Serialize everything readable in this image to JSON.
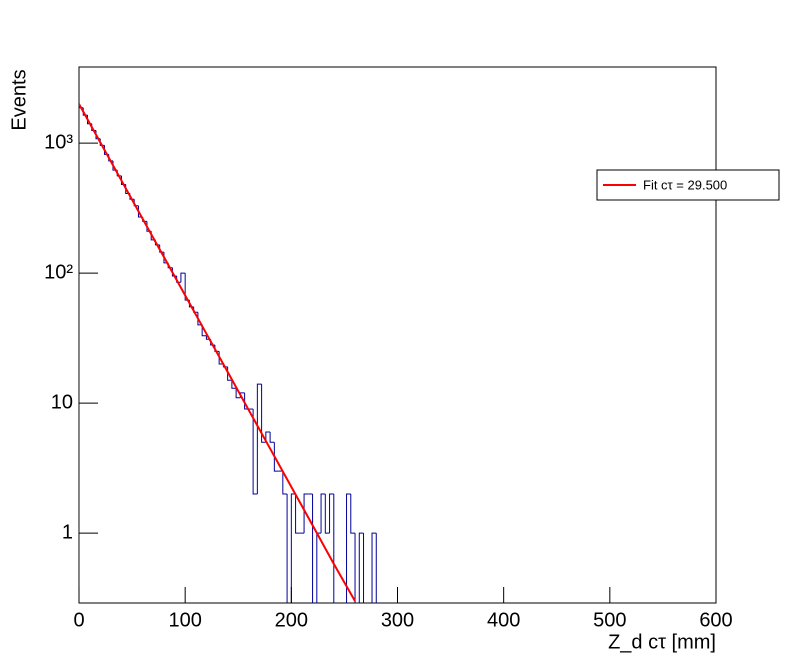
{
  "chart_data": {
    "type": "histogram",
    "x_label": "Z_d cτ [mm]",
    "y_label": "Events",
    "log_y": true,
    "xlim": [
      0,
      600
    ],
    "ylim": [
      0.29,
      3850
    ],
    "xticks": [
      0,
      100,
      200,
      300,
      400,
      500,
      600
    ],
    "yticks": [
      1,
      10,
      {
        "value": 100,
        "label": "10²"
      },
      {
        "value": 1000,
        "label": "10³"
      }
    ],
    "legend_position": "upper right",
    "bins": [
      0,
      4,
      8,
      12,
      16,
      20,
      24,
      28,
      32,
      36,
      40,
      44,
      48,
      52,
      56,
      60,
      64,
      68,
      72,
      76,
      80,
      84,
      88,
      92,
      96,
      100,
      104,
      108,
      112,
      116,
      120,
      124,
      128,
      132,
      136,
      140,
      144,
      148,
      152,
      156,
      160,
      164,
      168,
      172,
      176,
      180,
      184,
      188,
      192,
      196,
      200,
      204,
      208,
      212,
      216,
      220,
      224,
      228,
      232,
      236,
      240,
      244,
      248,
      252,
      256,
      260,
      264,
      268,
      272,
      276,
      280,
      284,
      288
    ],
    "counts": [
      1869,
      1640,
      1410,
      1250,
      1080,
      960,
      820,
      730,
      620,
      560,
      480,
      410,
      370,
      330,
      270,
      250,
      210,
      180,
      165,
      145,
      120,
      110,
      95,
      85,
      100,
      62,
      55,
      50,
      40,
      33,
      31,
      28,
      25,
      20,
      19,
      15,
      13,
      11,
      12,
      9,
      9,
      2,
      14,
      5,
      6,
      5,
      3,
      3,
      2,
      0,
      2,
      1,
      1,
      2,
      2,
      0,
      1,
      2,
      1,
      2,
      0,
      0,
      0,
      2,
      1,
      0,
      1,
      0,
      0,
      1,
      0,
      0
    ],
    "color": "#000099",
    "fit": {
      "name": "Fit cτ = 29.500",
      "color": "#ff0000",
      "x": [
        0,
        20,
        40,
        60,
        80,
        100,
        120,
        140,
        160,
        180,
        200,
        220,
        240,
        260
      ],
      "values": [
        2000,
        1015,
        515,
        261,
        133,
        67.4,
        34.2,
        17.4,
        8.8,
        4.47,
        2.27,
        1.15,
        0.58,
        0.3
      ]
    }
  }
}
